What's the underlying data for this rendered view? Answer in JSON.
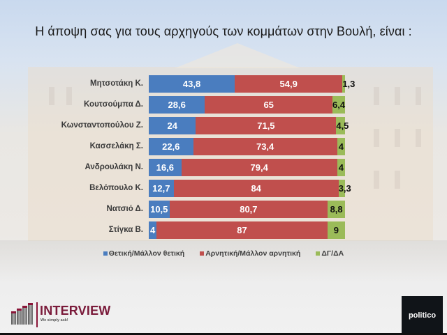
{
  "title": "Η άποψη σας για τους αρχηγούς των κομμάτων στην Βουλή,  είναι :",
  "colors": {
    "positive": "#4a7dbf",
    "negative": "#c04f4d",
    "dont_know": "#9bbb59"
  },
  "legend": [
    {
      "label": "Θετική/Μάλλον θετική",
      "color": "#4a7dbf"
    },
    {
      "label": "Αρνητική/Μάλλον αρνητική",
      "color": "#c04f4d"
    },
    {
      "label": "ΔΓ/ΔΑ",
      "color": "#9bbb59"
    }
  ],
  "rows": [
    {
      "name": "Μητσοτάκη Κ.",
      "pos": "43,8",
      "neg": "54,9",
      "dk": "1,3"
    },
    {
      "name": "Κουτσούμπα Δ.",
      "pos": "28,6",
      "neg": "65",
      "dk": "6,4"
    },
    {
      "name": "Κωνσταντοπούλου Ζ.",
      "pos": "24",
      "neg": "71,5",
      "dk": "4,5"
    },
    {
      "name": "Κασσελάκη Σ.",
      "pos": "22,6",
      "neg": "73,4",
      "dk": "4"
    },
    {
      "name": "Ανδρουλάκη Ν.",
      "pos": "16,6",
      "neg": "79,4",
      "dk": "4"
    },
    {
      "name": "Βελόπουλο Κ.",
      "pos": "12,7",
      "neg": "84",
      "dk": "3,3"
    },
    {
      "name": "Νατσιό Δ.",
      "pos": "10,5",
      "neg": "80,7",
      "dk": "8,8"
    },
    {
      "name": "Στίγκα Β.",
      "pos": "4",
      "neg": "87",
      "dk": "9"
    }
  ],
  "chart_data": {
    "type": "bar",
    "orientation": "horizontal",
    "stacked": true,
    "title": "Η άποψη σας για τους αρχηγούς των κομμάτων στην Βουλή,  είναι :",
    "xlabel": "",
    "ylabel": "",
    "xlim": [
      0,
      100
    ],
    "grid": false,
    "legend_position": "bottom",
    "categories": [
      "Μητσοτάκη Κ.",
      "Κουτσούμπα Δ.",
      "Κωνσταντοπούλου Ζ.",
      "Κασσελάκη Σ.",
      "Ανδρουλάκη Ν.",
      "Βελόπουλο Κ.",
      "Νατσιό Δ.",
      "Στίγκα Β."
    ],
    "series": [
      {
        "name": "Θετική/Μάλλον θετική",
        "color": "#4a7dbf",
        "values": [
          43.8,
          28.6,
          24,
          22.6,
          16.6,
          12.7,
          10.5,
          4
        ]
      },
      {
        "name": "Αρνητική/Μάλλον αρνητική",
        "color": "#c04f4d",
        "values": [
          54.9,
          65,
          71.5,
          73.4,
          79.4,
          84,
          80.7,
          87
        ]
      },
      {
        "name": "ΔΓ/ΔΑ",
        "color": "#9bbb59",
        "values": [
          1.3,
          6.4,
          4.5,
          4,
          4,
          3.3,
          8.8,
          9
        ]
      }
    ]
  },
  "logos": {
    "interview_name": "INTERVIEW",
    "interview_tagline": "We simply ask!",
    "politico": "politico"
  }
}
